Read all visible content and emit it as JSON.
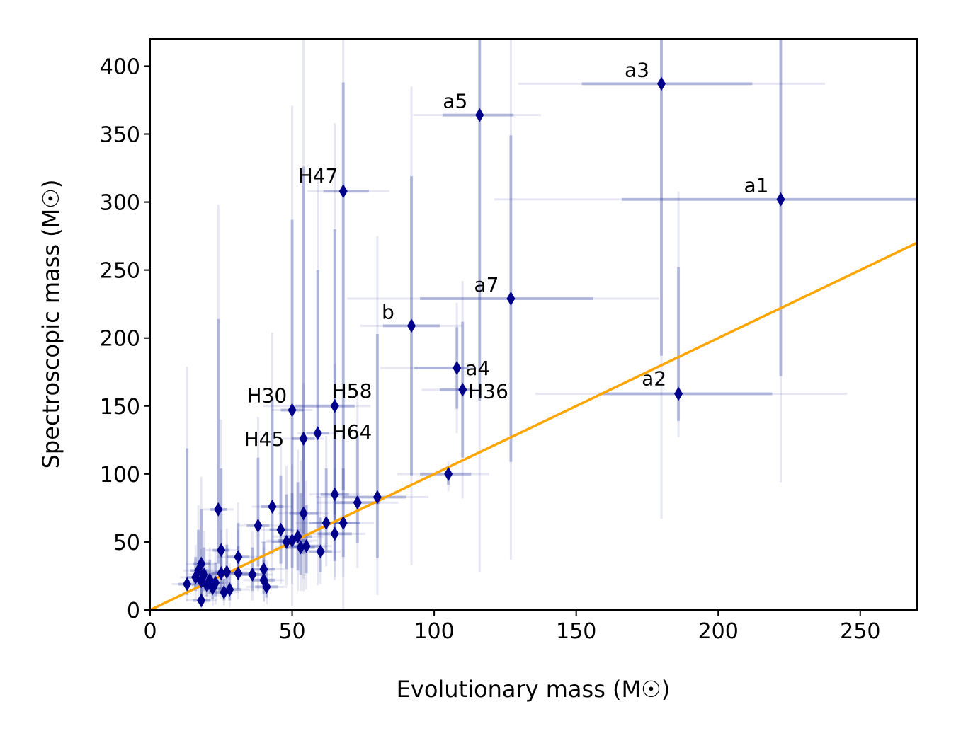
{
  "chart_data": {
    "type": "scatter",
    "xlabel": "Evolutionary mass (M☉)",
    "ylabel": "Spectroscopic mass (M☉)",
    "xlim": [
      0,
      270
    ],
    "ylim": [
      0,
      420
    ],
    "xticks": [
      0,
      50,
      100,
      150,
      200,
      250
    ],
    "yticks": [
      0,
      50,
      100,
      150,
      200,
      250,
      300,
      350,
      400
    ],
    "grid": false,
    "colors": {
      "marker": "#00008b",
      "errorbar": "#2e3a9e",
      "one_to_one_line": "#ffa500",
      "frame": "#000000"
    },
    "one_to_one_line": {
      "x": [
        0,
        270
      ],
      "y": [
        0,
        270
      ]
    },
    "points": [
      {
        "label": "a1",
        "x": 222,
        "y": 302,
        "xerr": [
          56,
          48
        ],
        "yerr": [
          130,
          140
        ]
      },
      {
        "label": "a2",
        "x": 186,
        "y": 159,
        "xerr": [
          28,
          33
        ],
        "yerr": [
          20,
          93
        ]
      },
      {
        "label": "a3",
        "x": 180,
        "y": 387,
        "xerr": [
          28,
          32
        ],
        "yerr": [
          200,
          60
        ]
      },
      {
        "label": "a4",
        "x": 108,
        "y": 178,
        "xerr": [
          15,
          4
        ],
        "yerr": [
          30,
          30
        ]
      },
      {
        "label": "a5",
        "x": 116,
        "y": 364,
        "xerr": [
          13,
          12
        ],
        "yerr": [
          210,
          60
        ]
      },
      {
        "label": "a7",
        "x": 127,
        "y": 229,
        "xerr": [
          32,
          29
        ],
        "yerr": [
          120,
          120
        ]
      },
      {
        "label": "b",
        "x": 92,
        "y": 209,
        "xerr": [
          10,
          10
        ],
        "yerr": [
          110,
          110
        ]
      },
      {
        "label": "H36",
        "x": 110,
        "y": 162,
        "xerr": [
          8,
          3
        ],
        "yerr": [
          50,
          50
        ]
      },
      {
        "label": "H47",
        "x": 68,
        "y": 308,
        "xerr": [
          7,
          9
        ],
        "yerr": [
          220,
          80
        ]
      },
      {
        "label": "H30",
        "x": 50,
        "y": 147,
        "xerr": [
          4,
          4
        ],
        "yerr": [
          90,
          140
        ]
      },
      {
        "label": "H58",
        "x": 65,
        "y": 150,
        "xerr": [
          14,
          7
        ],
        "yerr": [
          80,
          130
        ]
      },
      {
        "label": "H45",
        "x": 54,
        "y": 126,
        "xerr": [
          4,
          4
        ],
        "yerr": [
          70,
          200
        ]
      },
      {
        "label": "H64",
        "x": 59,
        "y": 130,
        "xerr": [
          4,
          4
        ],
        "yerr": [
          70,
          120
        ]
      },
      {
        "label": "",
        "x": 105,
        "y": 100,
        "xerr": [
          10,
          8
        ],
        "yerr": [
          8,
          6
        ]
      },
      {
        "label": "",
        "x": 80,
        "y": 83,
        "xerr": [
          12,
          10
        ],
        "yerr": [
          45,
          120
        ]
      },
      {
        "label": "",
        "x": 73,
        "y": 79,
        "xerr": [
          8,
          8
        ],
        "yerr": [
          30,
          50
        ]
      },
      {
        "label": "",
        "x": 68,
        "y": 64,
        "xerr": [
          6,
          6
        ],
        "yerr": [
          25,
          40
        ]
      },
      {
        "label": "",
        "x": 65,
        "y": 85,
        "xerr": [
          5,
          5
        ],
        "yerr": [
          30,
          60
        ]
      },
      {
        "label": "",
        "x": 65,
        "y": 56,
        "xerr": [
          6,
          6
        ],
        "yerr": [
          20,
          30
        ]
      },
      {
        "label": "",
        "x": 62,
        "y": 64,
        "xerr": [
          6,
          6
        ],
        "yerr": [
          20,
          40
        ]
      },
      {
        "label": "",
        "x": 60,
        "y": 43,
        "xerr": [
          4,
          4
        ],
        "yerr": [
          15,
          25
        ]
      },
      {
        "label": "",
        "x": 55,
        "y": 47,
        "xerr": [
          5,
          5
        ],
        "yerr": [
          20,
          30
        ]
      },
      {
        "label": "",
        "x": 54,
        "y": 71,
        "xerr": [
          5,
          5
        ],
        "yerr": [
          30,
          60
        ]
      },
      {
        "label": "",
        "x": 53,
        "y": 46,
        "xerr": [
          5,
          5
        ],
        "yerr": [
          20,
          40
        ]
      },
      {
        "label": "",
        "x": 52,
        "y": 54,
        "xerr": [
          5,
          5
        ],
        "yerr": [
          25,
          40
        ]
      },
      {
        "label": "",
        "x": 50,
        "y": 51,
        "xerr": [
          5,
          5
        ],
        "yerr": [
          20,
          35
        ]
      },
      {
        "label": "",
        "x": 48,
        "y": 50,
        "xerr": [
          5,
          5
        ],
        "yerr": [
          20,
          35
        ]
      },
      {
        "label": "",
        "x": 46,
        "y": 59,
        "xerr": [
          4,
          4
        ],
        "yerr": [
          25,
          40
        ]
      },
      {
        "label": "",
        "x": 43,
        "y": 76,
        "xerr": [
          4,
          4
        ],
        "yerr": [
          35,
          80
        ]
      },
      {
        "label": "",
        "x": 38,
        "y": 62,
        "xerr": [
          4,
          4
        ],
        "yerr": [
          30,
          50
        ]
      },
      {
        "label": "",
        "x": 40,
        "y": 30,
        "xerr": [
          4,
          4
        ],
        "yerr": [
          15,
          20
        ]
      },
      {
        "label": "",
        "x": 40,
        "y": 22,
        "xerr": [
          4,
          4
        ],
        "yerr": [
          10,
          15
        ]
      },
      {
        "label": "",
        "x": 41,
        "y": 17,
        "xerr": [
          4,
          4
        ],
        "yerr": [
          8,
          12
        ]
      },
      {
        "label": "",
        "x": 36,
        "y": 26,
        "xerr": [
          4,
          4
        ],
        "yerr": [
          12,
          20
        ]
      },
      {
        "label": "",
        "x": 31,
        "y": 39,
        "xerr": [
          4,
          4
        ],
        "yerr": [
          15,
          25
        ]
      },
      {
        "label": "",
        "x": 31,
        "y": 27,
        "xerr": [
          4,
          4
        ],
        "yerr": [
          12,
          20
        ]
      },
      {
        "label": "",
        "x": 27,
        "y": 28,
        "xerr": [
          4,
          4
        ],
        "yerr": [
          12,
          20
        ]
      },
      {
        "label": "",
        "x": 28,
        "y": 15,
        "xerr": [
          4,
          4
        ],
        "yerr": [
          8,
          12
        ]
      },
      {
        "label": "",
        "x": 25,
        "y": 44,
        "xerr": [
          3,
          3
        ],
        "yerr": [
          20,
          60
        ]
      },
      {
        "label": "",
        "x": 24,
        "y": 74,
        "xerr": [
          3,
          3
        ],
        "yerr": [
          40,
          140
        ]
      },
      {
        "label": "",
        "x": 25,
        "y": 27,
        "xerr": [
          3,
          3
        ],
        "yerr": [
          12,
          20
        ]
      },
      {
        "label": "",
        "x": 26,
        "y": 13,
        "xerr": [
          3,
          3
        ],
        "yerr": [
          6,
          10
        ]
      },
      {
        "label": "",
        "x": 23,
        "y": 20,
        "xerr": [
          3,
          3
        ],
        "yerr": [
          10,
          15
        ]
      },
      {
        "label": "",
        "x": 22,
        "y": 16,
        "xerr": [
          3,
          3
        ],
        "yerr": [
          8,
          12
        ]
      },
      {
        "label": "",
        "x": 21,
        "y": 22,
        "xerr": [
          3,
          3
        ],
        "yerr": [
          10,
          15
        ]
      },
      {
        "label": "",
        "x": 20,
        "y": 18,
        "xerr": [
          3,
          3
        ],
        "yerr": [
          8,
          12
        ]
      },
      {
        "label": "",
        "x": 19,
        "y": 26,
        "xerr": [
          3,
          3
        ],
        "yerr": [
          12,
          20
        ]
      },
      {
        "label": "",
        "x": 18,
        "y": 34,
        "xerr": [
          3,
          3
        ],
        "yerr": [
          15,
          40
        ]
      },
      {
        "label": "",
        "x": 18,
        "y": 21,
        "xerr": [
          3,
          3
        ],
        "yerr": [
          10,
          15
        ]
      },
      {
        "label": "",
        "x": 18,
        "y": 7,
        "xerr": [
          3,
          3
        ],
        "yerr": [
          4,
          8
        ]
      },
      {
        "label": "",
        "x": 17,
        "y": 29,
        "xerr": [
          3,
          3
        ],
        "yerr": [
          12,
          30
        ]
      },
      {
        "label": "",
        "x": 16,
        "y": 24,
        "xerr": [
          3,
          3
        ],
        "yerr": [
          10,
          15
        ]
      },
      {
        "label": "",
        "x": 13,
        "y": 19,
        "xerr": [
          3,
          3
        ],
        "yerr": [
          8,
          100
        ]
      }
    ]
  }
}
